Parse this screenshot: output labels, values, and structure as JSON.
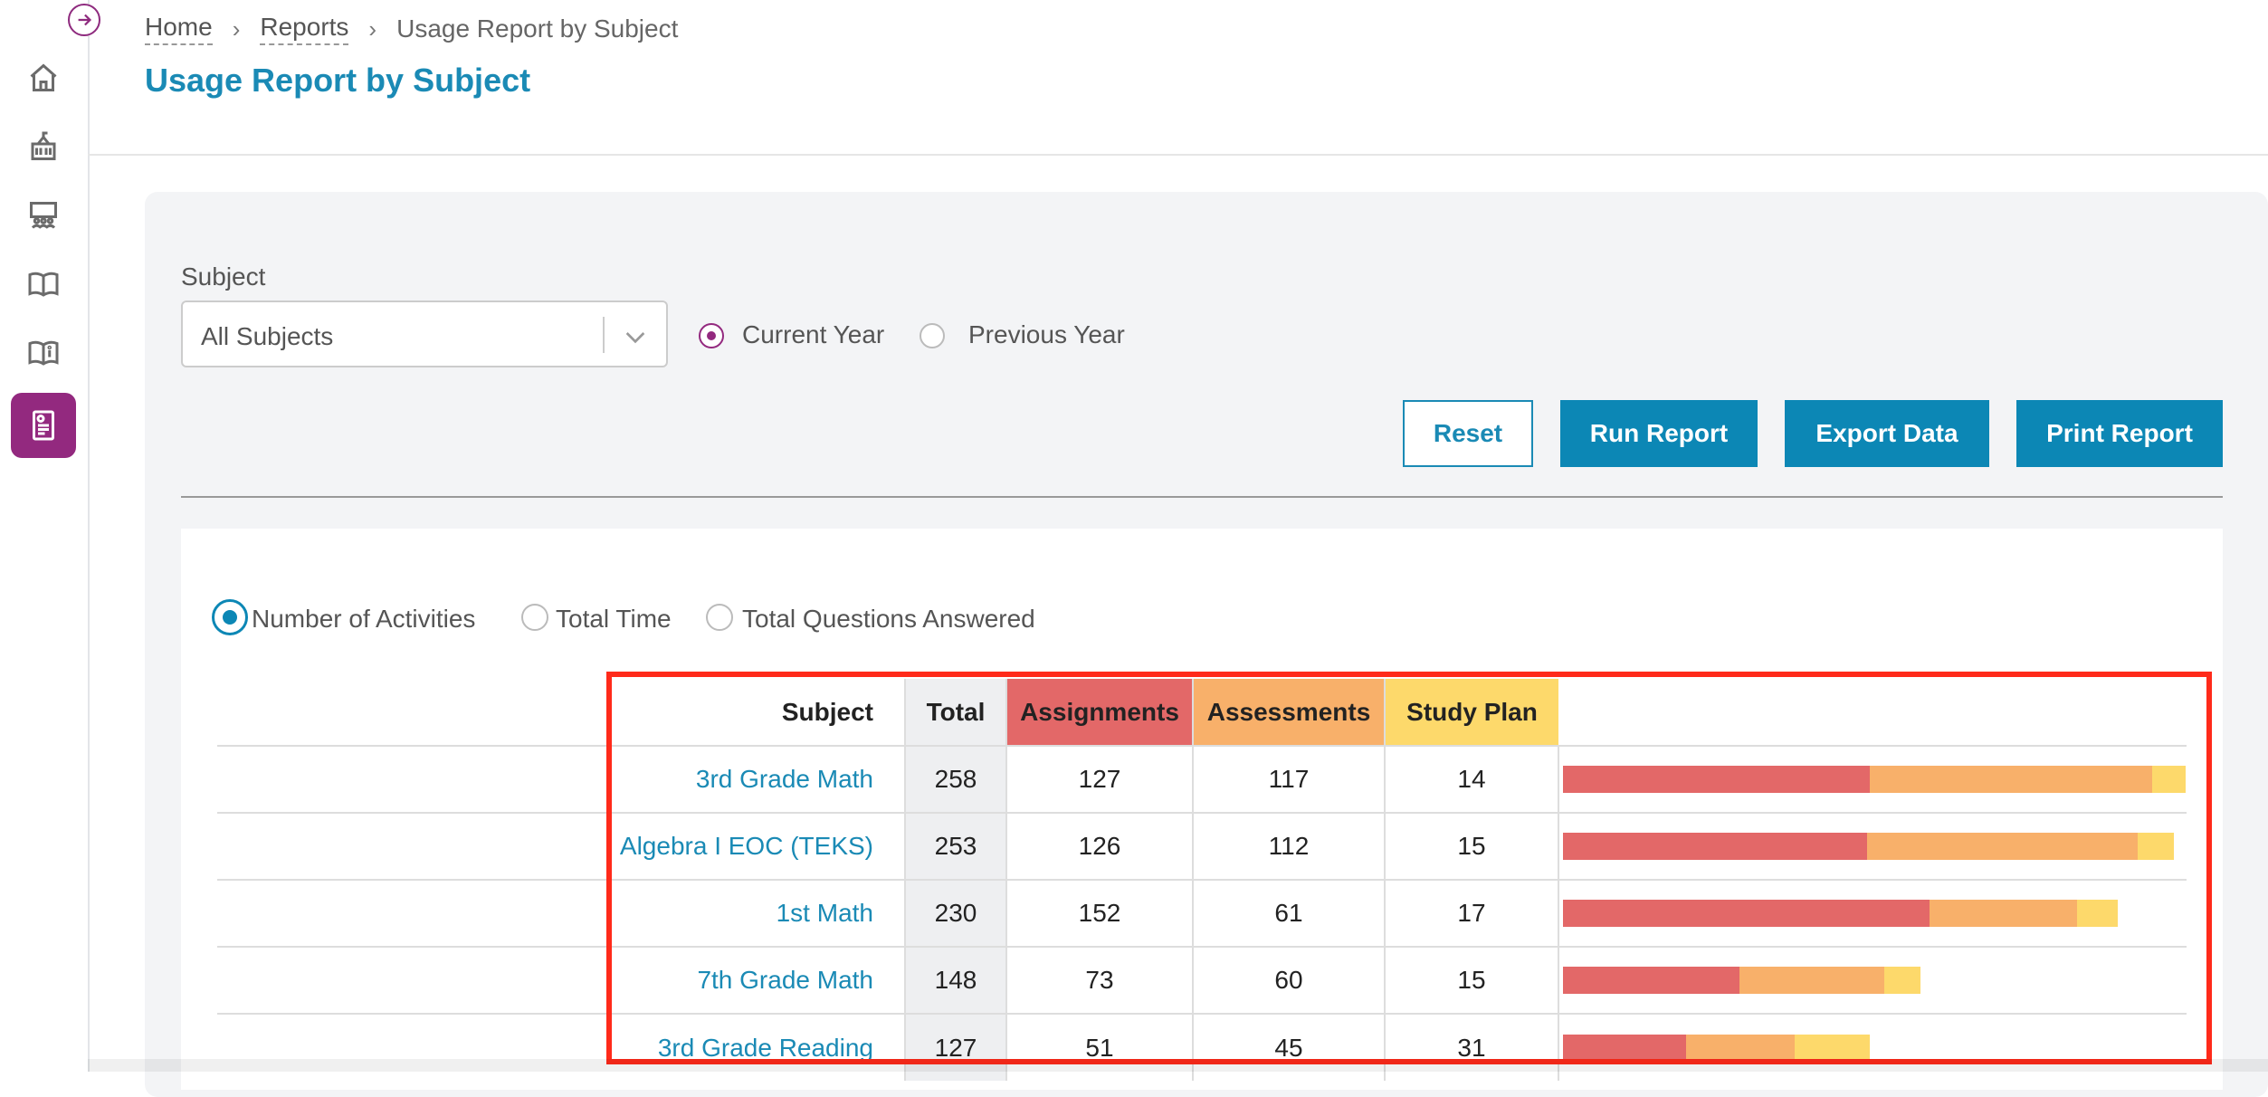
{
  "breadcrumb": {
    "home": "Home",
    "reports": "Reports",
    "current": "Usage Report by Subject"
  },
  "page": {
    "title": "Usage Report by Subject"
  },
  "filters": {
    "subject_label": "Subject",
    "subject_value": "All Subjects",
    "year_options": {
      "current": "Current Year",
      "previous": "Previous Year",
      "selected": "Current Year"
    }
  },
  "buttons": {
    "reset": "Reset",
    "run": "Run Report",
    "export": "Export Data",
    "print": "Print Report"
  },
  "metrics": {
    "activities": "Number of Activities",
    "time": "Total Time",
    "questions": "Total Questions Answered",
    "selected": "Number of Activities"
  },
  "colors": {
    "assignments": "#e36868",
    "assessments": "#f8b06a",
    "study_plan": "#fdd96b",
    "accent": "#0c87b5",
    "brand": "#93297f"
  },
  "table": {
    "headers": {
      "subject": "Subject",
      "total": "Total",
      "assignments": "Assignments",
      "assessments": "Assessments",
      "study_plan": "Study Plan"
    },
    "rows": [
      {
        "subject": "3rd Grade Math",
        "total": "258",
        "assignments": "127",
        "assessments": "117",
        "study_plan": "14"
      },
      {
        "subject": "Algebra I EOC (TEKS)",
        "total": "253",
        "assignments": "126",
        "assessments": "112",
        "study_plan": "15"
      },
      {
        "subject": "1st Math",
        "total": "230",
        "assignments": "152",
        "assessments": "61",
        "study_plan": "17"
      },
      {
        "subject": "7th Grade Math",
        "total": "148",
        "assignments": "73",
        "assessments": "60",
        "study_plan": "15"
      },
      {
        "subject": "3rd Grade Reading",
        "total": "127",
        "assignments": "51",
        "assessments": "45",
        "study_plan": "31"
      }
    ]
  }
}
